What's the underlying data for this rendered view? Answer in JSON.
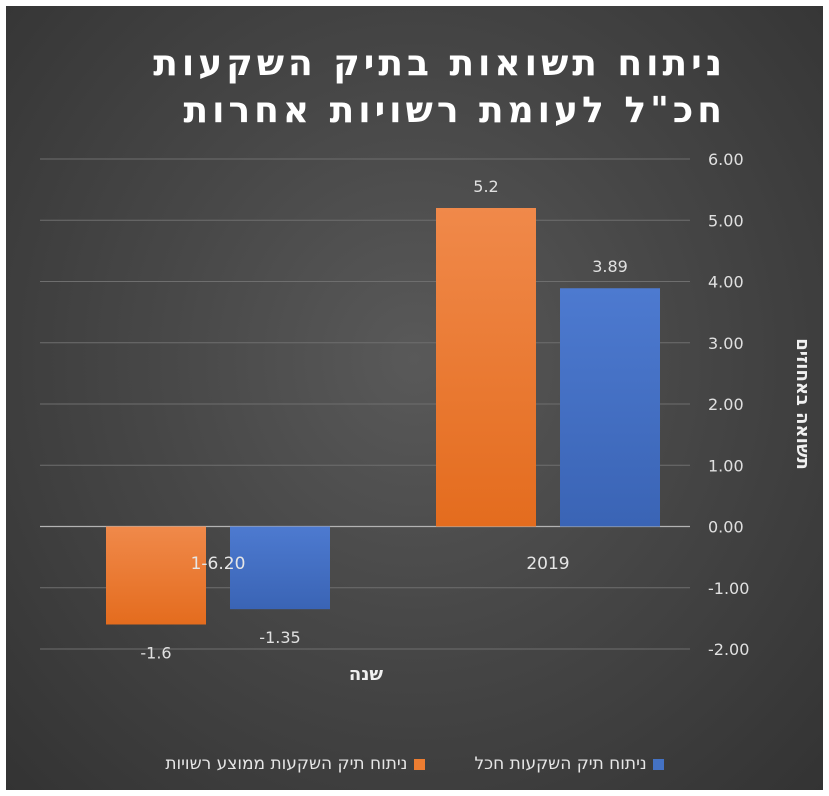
{
  "chart_data": {
    "type": "bar",
    "title_lines": [
      "ניתוח תשואות בתיק השקעות",
      "חכ\"ל לעומת רשויות אחרות"
    ],
    "categories": [
      "1-6.20",
      "2019"
    ],
    "series": [
      {
        "name": "ניתוח תיק השקעות ממוצע רשויות",
        "values": [
          -1.6,
          5.2
        ],
        "labels": [
          "-1.6",
          "5.2"
        ],
        "color": "#ed7d31"
      },
      {
        "name": "ניתוח תיק השקעות חכל",
        "values": [
          -1.35,
          3.89
        ],
        "labels": [
          "-1.35",
          "3.89"
        ],
        "color": "#4472c4"
      }
    ],
    "ylabel": "תשואה באחוזים",
    "xlabel": "שנה",
    "ylim": [
      -2,
      6
    ],
    "yticks": [
      "-2.00",
      "-1.00",
      "0.00",
      "1.00",
      "2.00",
      "3.00",
      "4.00",
      "5.00",
      "6.00"
    ],
    "yaxis_position": "right",
    "grid": true,
    "legend_position": "bottom"
  }
}
